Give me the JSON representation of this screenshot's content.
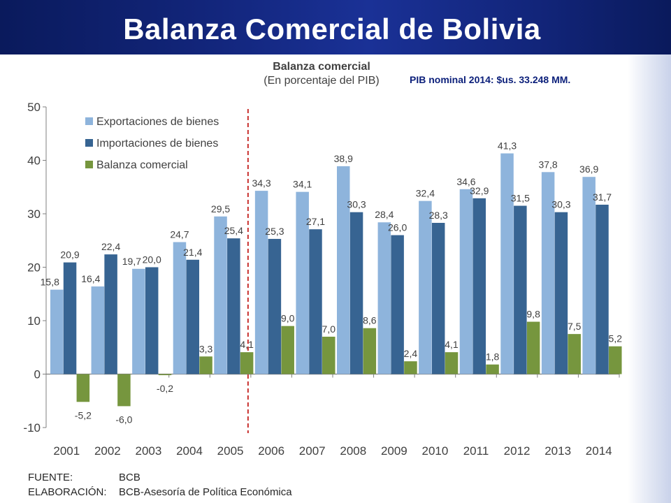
{
  "slide": {
    "title": "Balanza Comercial de Bolivia",
    "note": "PIB nominal 2014: $us. 33.248 MM."
  },
  "footer": {
    "source_label": "FUENTE:",
    "source_value": "BCB",
    "elab_label": "ELABORACIÓN:",
    "elab_value": "BCB-Asesoría de Política Económica"
  },
  "colors": {
    "header": "#12257a",
    "exports": "#8eb4dc",
    "imports": "#376492",
    "balance": "#76963e",
    "divider": "#c8302e"
  },
  "chart_data": {
    "type": "bar",
    "title": "Balanza comercial",
    "subtitle": "(En porcentaje del PIB)",
    "categories": [
      "2001",
      "2002",
      "2003",
      "2004",
      "2005",
      "2006",
      "2007",
      "2008",
      "2009",
      "2010",
      "2011",
      "2012",
      "2013",
      "2014"
    ],
    "series": [
      {
        "name": "Exportaciones de bienes",
        "values": [
          15.8,
          16.4,
          19.7,
          24.7,
          29.5,
          34.3,
          34.1,
          38.9,
          28.4,
          32.4,
          34.6,
          41.3,
          37.8,
          36.9
        ],
        "labels": [
          "15,8",
          "16,4",
          "19,7",
          "24,7",
          "29,5",
          "34,3",
          "34,1",
          "38,9",
          "28,4",
          "32,4",
          "34,6",
          "41,3",
          "37,8",
          "36,9"
        ]
      },
      {
        "name": "Importaciones de bienes",
        "values": [
          20.9,
          22.4,
          20.0,
          21.4,
          25.4,
          25.3,
          27.1,
          30.3,
          26.0,
          28.3,
          32.9,
          31.5,
          30.3,
          31.7
        ],
        "labels": [
          "20,9",
          "22,4",
          "20,0",
          "21,4",
          "25,4",
          "25,3",
          "27,1",
          "30,3",
          "26,0",
          "28,3",
          "32,9",
          "31,5",
          "30,3",
          "31,7"
        ]
      },
      {
        "name": "Balanza comercial",
        "values": [
          -5.2,
          -6.0,
          -0.2,
          3.3,
          4.1,
          9.0,
          7.0,
          8.6,
          2.4,
          4.1,
          1.8,
          9.8,
          7.5,
          5.2
        ],
        "labels": [
          "-5,2",
          "-6,0",
          "-0,2",
          "3,3",
          "4,1",
          "9,0",
          "7,0",
          "8,6",
          "2,4",
          "4,1",
          "1,8",
          "9,8",
          "7,5",
          "5,2"
        ]
      }
    ],
    "ylim": [
      -10,
      50
    ],
    "yticks": [
      50,
      40,
      30,
      20,
      10,
      0,
      -10
    ],
    "legend_position": "top-left",
    "divider_between": [
      "2005",
      "2006"
    ]
  }
}
